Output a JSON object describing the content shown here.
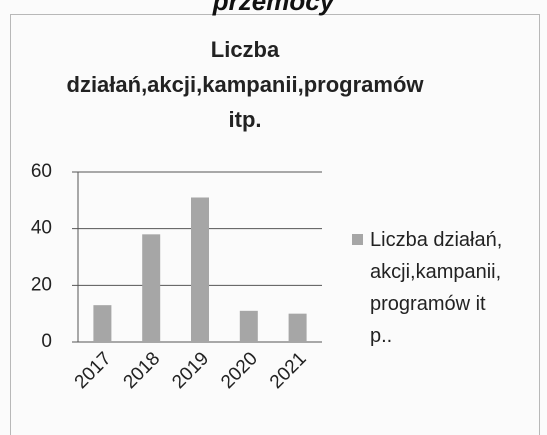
{
  "header": "przemocy",
  "chart_data": {
    "type": "bar",
    "title": "Liczba działań,akcji,kampanii,programów itp.",
    "categories": [
      "2017",
      "2018",
      "2019",
      "2020",
      "2021"
    ],
    "series": [
      {
        "name": "Liczba działań,akcji,kampanii,programów itp..",
        "color": "#a6a6a6",
        "values": [
          13,
          38,
          51,
          11,
          10
        ]
      }
    ],
    "ylim": [
      0,
      60
    ],
    "yticks": [
      0,
      20,
      40,
      60
    ],
    "grid": true,
    "legend": "right"
  }
}
